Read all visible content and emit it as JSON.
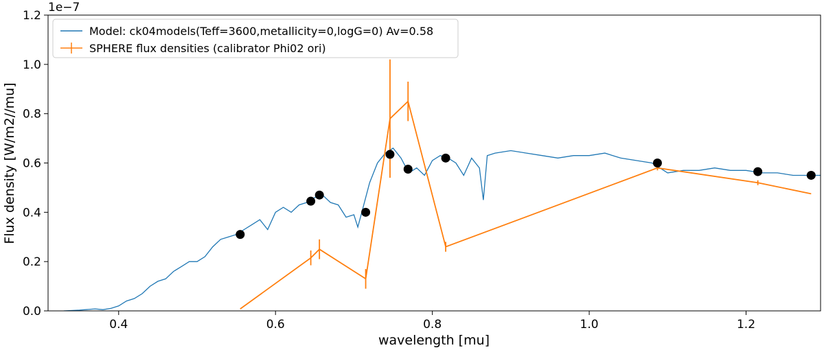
{
  "chart_data": {
    "type": "line",
    "xlabel": "wavelength [mu]",
    "ylabel": "Flux density [W/m2//mu]",
    "offset_text": "1e−7",
    "xlim": [
      0.31,
      1.295
    ],
    "ylim": [
      0.0,
      1.2
    ],
    "x_ticks": [
      0.4,
      0.6,
      0.8,
      1.0,
      1.2
    ],
    "x_tick_labels": [
      "0.4",
      "0.6",
      "0.8",
      "1.0",
      "1.2"
    ],
    "y_ticks": [
      0.0,
      0.2,
      0.4,
      0.6,
      0.8,
      1.0,
      1.2
    ],
    "y_tick_labels": [
      "0.0",
      "0.2",
      "0.4",
      "0.6",
      "0.8",
      "1.0",
      "1.2"
    ],
    "grid": false,
    "legend_position": "upper-left",
    "colors": {
      "model": "#1f77b4",
      "sphere": "#ff7f0e",
      "points": "#000000"
    },
    "series": [
      {
        "name": "Model: ck04models(Teff=3600,metallicity=0,logG=0) Av=0.58",
        "kind": "line",
        "x": [
          0.33,
          0.35,
          0.37,
          0.38,
          0.39,
          0.4,
          0.41,
          0.42,
          0.43,
          0.44,
          0.45,
          0.46,
          0.47,
          0.48,
          0.49,
          0.5,
          0.51,
          0.52,
          0.53,
          0.54,
          0.55,
          0.56,
          0.57,
          0.58,
          0.59,
          0.6,
          0.61,
          0.62,
          0.63,
          0.64,
          0.65,
          0.66,
          0.67,
          0.68,
          0.69,
          0.7,
          0.705,
          0.71,
          0.72,
          0.73,
          0.74,
          0.75,
          0.76,
          0.77,
          0.78,
          0.79,
          0.8,
          0.81,
          0.82,
          0.83,
          0.84,
          0.85,
          0.86,
          0.865,
          0.87,
          0.88,
          0.9,
          0.92,
          0.94,
          0.96,
          0.98,
          1.0,
          1.02,
          1.04,
          1.06,
          1.08,
          1.09,
          1.1,
          1.12,
          1.14,
          1.16,
          1.18,
          1.2,
          1.22,
          1.24,
          1.26,
          1.28,
          1.295
        ],
        "y": [
          0.0,
          0.003,
          0.008,
          0.005,
          0.01,
          0.02,
          0.04,
          0.05,
          0.07,
          0.1,
          0.12,
          0.13,
          0.16,
          0.18,
          0.2,
          0.2,
          0.22,
          0.26,
          0.29,
          0.3,
          0.31,
          0.33,
          0.35,
          0.37,
          0.33,
          0.4,
          0.42,
          0.4,
          0.43,
          0.44,
          0.46,
          0.47,
          0.44,
          0.43,
          0.38,
          0.39,
          0.34,
          0.4,
          0.52,
          0.6,
          0.64,
          0.66,
          0.62,
          0.56,
          0.58,
          0.55,
          0.61,
          0.63,
          0.62,
          0.6,
          0.55,
          0.62,
          0.58,
          0.45,
          0.63,
          0.64,
          0.65,
          0.64,
          0.63,
          0.62,
          0.63,
          0.63,
          0.64,
          0.62,
          0.61,
          0.6,
          0.58,
          0.56,
          0.57,
          0.57,
          0.58,
          0.57,
          0.57,
          0.56,
          0.56,
          0.55,
          0.55,
          0.55
        ]
      },
      {
        "name": "SPHERE flux densities (calibrator Phi02 ori)",
        "kind": "errorbar",
        "x": [
          0.555,
          0.645,
          0.656,
          0.715,
          0.746,
          0.769,
          0.817,
          1.087,
          1.215,
          1.283
        ],
        "y": [
          0.008,
          0.215,
          0.25,
          0.13,
          0.78,
          0.85,
          0.26,
          0.58,
          0.52,
          0.475
        ],
        "yerr": [
          0.0,
          0.03,
          0.04,
          0.04,
          0.24,
          0.08,
          0.02,
          0.01,
          0.01,
          0.0
        ]
      },
      {
        "name": "",
        "kind": "scatter",
        "x": [
          0.555,
          0.645,
          0.656,
          0.715,
          0.746,
          0.769,
          0.817,
          1.087,
          1.215,
          1.283
        ],
        "y": [
          0.31,
          0.445,
          0.47,
          0.4,
          0.635,
          0.575,
          0.62,
          0.6,
          0.565,
          0.55
        ]
      }
    ]
  }
}
